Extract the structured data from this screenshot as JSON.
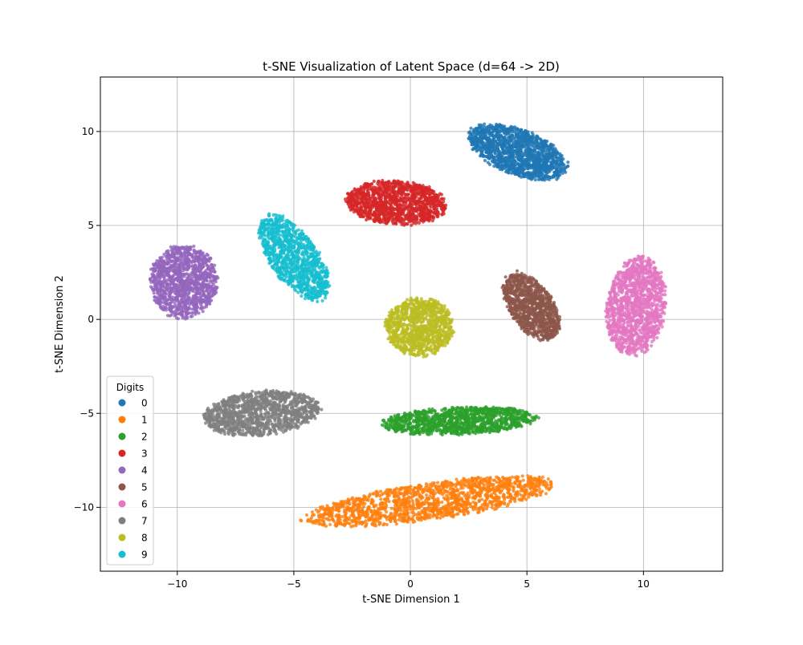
{
  "chart_data": {
    "type": "scatter",
    "title": "t-SNE Visualization of Latent Space (d=64 -> 2D)",
    "xlabel": "t-SNE Dimension 1",
    "ylabel": "t-SNE Dimension 2",
    "xlim": [
      -13.3,
      13.4
    ],
    "ylim": [
      -13.4,
      12.9
    ],
    "xticks": [
      -10,
      -5,
      0,
      5,
      10
    ],
    "yticks": [
      -10,
      -5,
      0,
      5,
      10
    ],
    "grid": true,
    "legend": {
      "title": "Digits",
      "placement": "lower-left"
    },
    "series": [
      {
        "name": "0",
        "color": "#1f77b4",
        "center": [
          4.6,
          8.9
        ],
        "spread": [
          2.4,
          1.2
        ],
        "angle_deg": -28,
        "count": 1400
      },
      {
        "name": "1",
        "color": "#ff7f0e",
        "center": [
          0.8,
          -9.7
        ],
        "spread": [
          5.6,
          1.0
        ],
        "angle_deg": 10,
        "count": 1500
      },
      {
        "name": "2",
        "color": "#2ca02c",
        "center": [
          2.1,
          -5.4
        ],
        "spread": [
          3.4,
          0.75
        ],
        "angle_deg": 3,
        "count": 1200
      },
      {
        "name": "3",
        "color": "#d62728",
        "center": [
          -0.6,
          6.2
        ],
        "spread": [
          2.2,
          1.2
        ],
        "angle_deg": -5,
        "count": 1300
      },
      {
        "name": "4",
        "color": "#9467bd",
        "center": [
          -9.7,
          2.0
        ],
        "spread": [
          1.5,
          2.0
        ],
        "angle_deg": 0,
        "count": 1200
      },
      {
        "name": "5",
        "color": "#8c564b",
        "center": [
          5.2,
          0.7
        ],
        "spread": [
          1.0,
          2.0
        ],
        "angle_deg": 25,
        "count": 1000
      },
      {
        "name": "6",
        "color": "#e377c2",
        "center": [
          9.7,
          0.7
        ],
        "spread": [
          1.3,
          2.7
        ],
        "angle_deg": -5,
        "count": 1300
      },
      {
        "name": "7",
        "color": "#7f7f7f",
        "center": [
          -6.4,
          -5.0
        ],
        "spread": [
          2.6,
          1.2
        ],
        "angle_deg": 8,
        "count": 1200
      },
      {
        "name": "8",
        "color": "#bcbd22",
        "center": [
          0.4,
          -0.4
        ],
        "spread": [
          1.5,
          1.6
        ],
        "angle_deg": 0,
        "count": 1000
      },
      {
        "name": "9",
        "color": "#17becf",
        "center": [
          -5.0,
          3.3
        ],
        "spread": [
          1.1,
          2.6
        ],
        "angle_deg": 28,
        "count": 1100
      }
    ]
  }
}
